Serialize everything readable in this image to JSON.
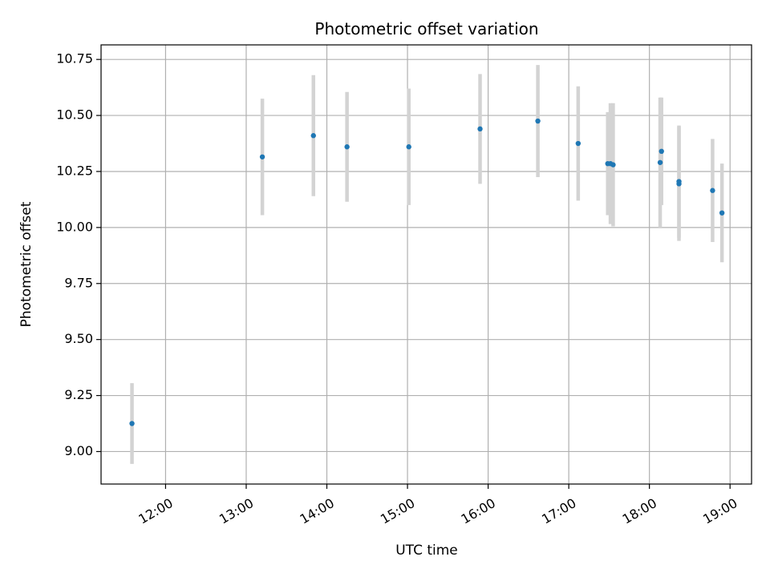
{
  "chart_data": {
    "type": "scatter",
    "title": "Photometric offset variation",
    "xlabel": "UTC time",
    "ylabel": "Photometric offset",
    "x_ticks": [
      "12:00",
      "13:00",
      "14:00",
      "15:00",
      "16:00",
      "17:00",
      "18:00",
      "19:00"
    ],
    "y_ticks": [
      "9.00",
      "9.25",
      "9.50",
      "9.75",
      "10.00",
      "10.25",
      "10.50",
      "10.75"
    ],
    "xlim": [
      "11:12",
      "19:16"
    ],
    "ylim": [
      8.855,
      10.815
    ],
    "grid": true,
    "point_color": "#1f77b4",
    "errorbar_color": "#d3d3d3",
    "series": [
      {
        "points": [
          {
            "x": "11:35",
            "y": 9.125,
            "err": 0.18
          },
          {
            "x": "13:12",
            "y": 10.315,
            "err": 0.26
          },
          {
            "x": "13:50",
            "y": 10.41,
            "err": 0.27
          },
          {
            "x": "14:15",
            "y": 10.36,
            "err": 0.245
          },
          {
            "x": "15:01",
            "y": 10.36,
            "err": 0.26
          },
          {
            "x": "15:54",
            "y": 10.44,
            "err": 0.245
          },
          {
            "x": "16:37",
            "y": 10.475,
            "err": 0.25
          },
          {
            "x": "17:07",
            "y": 10.375,
            "err": 0.255
          },
          {
            "x": "17:29",
            "y": 10.285,
            "err": 0.23
          },
          {
            "x": "17:31",
            "y": 10.285,
            "err": 0.27
          },
          {
            "x": "17:33",
            "y": 10.28,
            "err": 0.275
          },
          {
            "x": "18:08",
            "y": 10.29,
            "err": 0.29
          },
          {
            "x": "18:09",
            "y": 10.34,
            "err": 0.24
          },
          {
            "x": "18:22",
            "y": 10.195,
            "err": 0.255
          },
          {
            "x": "18:22",
            "y": 10.205,
            "err": 0.25
          },
          {
            "x": "18:47",
            "y": 10.165,
            "err": 0.23
          },
          {
            "x": "18:54",
            "y": 10.065,
            "err": 0.22
          }
        ]
      }
    ]
  }
}
